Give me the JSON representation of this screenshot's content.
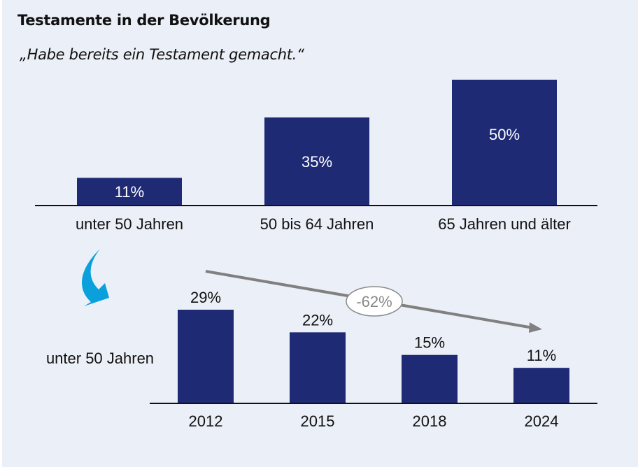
{
  "header": {
    "title": "Testamente in der Bevölkerung",
    "subtitle": "„Habe bereits ein Testament gemacht.“"
  },
  "colors": {
    "background": "#ebeff7",
    "bar": "#1f2a75",
    "axis": "#111111",
    "trend_arrow": "#808080",
    "curved_arrow": "#0aa0dc",
    "inner_label": "#ffffff",
    "text": "#111111",
    "trend_label": "#888888"
  },
  "chart_data": [
    {
      "type": "bar",
      "title": "Testamente in der Bevölkerung",
      "subtitle": "„Habe bereits ein Testament gemacht.“",
      "categories": [
        "unter 50 Jahren",
        "50 bis 64 Jahren",
        "65 Jahren und älter"
      ],
      "values": [
        11,
        35,
        50
      ],
      "value_labels": [
        "11%",
        "35%",
        "50%"
      ],
      "unit": "%",
      "xlabel": "",
      "ylabel": "",
      "ylim": [
        0,
        50
      ],
      "grid": false,
      "legend": "none",
      "labels_position": "inside"
    },
    {
      "type": "bar",
      "series_label": "unter 50 Jahren",
      "categories": [
        "2012",
        "2015",
        "2018",
        "2024"
      ],
      "values": [
        29,
        22,
        15,
        11
      ],
      "value_labels": [
        "29%",
        "22%",
        "15%",
        "11%"
      ],
      "unit": "%",
      "xlabel": "",
      "ylabel": "",
      "ylim": [
        0,
        29
      ],
      "grid": false,
      "legend": "none",
      "labels_position": "above",
      "annotation": {
        "text": "-62%",
        "kind": "trend-arrow",
        "direction": "down-right"
      }
    }
  ]
}
